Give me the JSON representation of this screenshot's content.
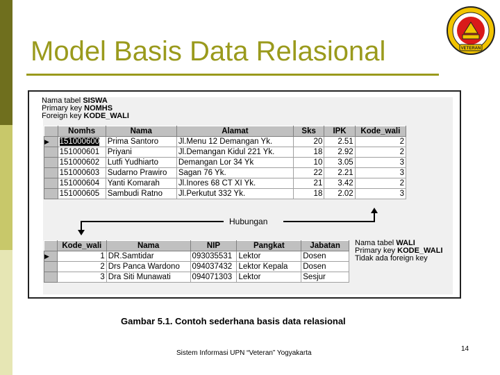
{
  "slide": {
    "title": "Model Basis Data Relasional",
    "caption": "Gambar 5.1. Contoh sederhana basis data relasional",
    "footer": "Sistem Informasi UPN “Veteran” Yogyakarta",
    "page_number": "14",
    "accent_color": "#9a9a1c"
  },
  "logo": {
    "icon": "university-seal-icon",
    "text": "VETERAN"
  },
  "siswa": {
    "info_line1_label": "Nama tabel ",
    "info_line1_value": "SISWA",
    "info_line2_label": "Primary key ",
    "info_line2_value": "NOMHS",
    "info_line3_label": "Foreign key ",
    "info_line3_value": "KODE_WALI",
    "columns": [
      "Nomhs",
      "Nama",
      "Alamat",
      "Sks",
      "IPK",
      "Kode_wali"
    ],
    "rows": [
      [
        "151000600",
        "Prima Santoro",
        "Jl.Menu 12 Demangan Yk.",
        "20",
        "2.51",
        "2"
      ],
      [
        "151000601",
        "Priyani",
        "Jl.Demangan Kidul 221 Yk.",
        "18",
        "2.92",
        "2"
      ],
      [
        "151000602",
        "Lutfi Yudhiarto",
        "Demangan Lor 34 Yk",
        "10",
        "3.05",
        "3"
      ],
      [
        "151000603",
        "Sudarno Prawiro",
        "Sagan 76 Yk.",
        "22",
        "2.21",
        "3"
      ],
      [
        "151000604",
        "Yanti Komarah",
        "Jl.Inores 68 CT XI Yk.",
        "21",
        "3.42",
        "2"
      ],
      [
        "151000605",
        "Sambudi Ratno",
        "Jl.Perkutut 332 Yk.",
        "18",
        "2.02",
        "3"
      ]
    ]
  },
  "relation": {
    "label": "Hubungan"
  },
  "wali": {
    "info_line1_label": "Nama tabel ",
    "info_line1_value": "WALI",
    "info_line2_label": "Primary key ",
    "info_line2_value": "KODE_WALI",
    "info_line3": "Tidak ada foreign key",
    "columns": [
      "Kode_wali",
      "Nama",
      "NIP",
      "Pangkat",
      "Jabatan"
    ],
    "rows": [
      [
        "1",
        "DR.Samtidar",
        "093035531",
        "Lektor",
        "Dosen"
      ],
      [
        "2",
        "Drs Panca Wardono",
        "094037432",
        "Lektor Kepala",
        "Dosen"
      ],
      [
        "3",
        "Dra Siti Munawati",
        "094071303",
        "Lektor",
        "Sesjur"
      ]
    ]
  }
}
